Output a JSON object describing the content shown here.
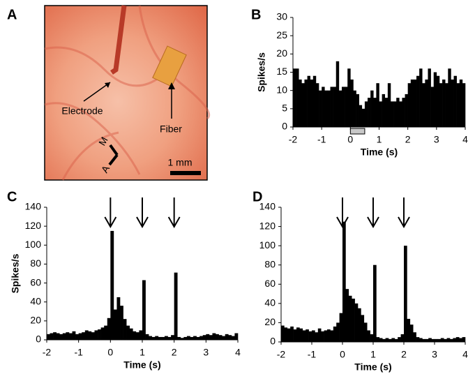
{
  "panel_a": {
    "label": "A",
    "electrode_label": "Electrode",
    "fiber_label": "Fiber",
    "scale_label": "1 mm",
    "dir_m": "M",
    "dir_a": "A"
  },
  "chart_data": [
    {
      "type": "histogram",
      "label": "B",
      "xlabel": "Time (s)",
      "ylabel": "Spikes/s",
      "color": "#000000",
      "bins": [
        -2,
        -1.9,
        -1.8,
        -1.7,
        -1.6,
        -1.5,
        -1.4,
        -1.3,
        -1.2,
        -1.1,
        -1,
        -0.9,
        -0.8,
        -0.7,
        -0.6,
        -0.5,
        -0.4,
        -0.3,
        -0.2,
        -0.1,
        0,
        0.1,
        0.2,
        0.3,
        0.4,
        0.5,
        0.6,
        0.7,
        0.8,
        0.9,
        1,
        1.1,
        1.2,
        1.3,
        1.4,
        1.5,
        1.6,
        1.7,
        1.8,
        1.9,
        2,
        2.1,
        2.2,
        2.3,
        2.4,
        2.5,
        2.6,
        2.7,
        2.8,
        2.9,
        3,
        3.1,
        3.2,
        3.3,
        3.4,
        3.5,
        3.6,
        3.7,
        3.8,
        3.9,
        4
      ],
      "values": [
        16,
        16,
        13,
        12,
        13,
        14,
        13,
        14,
        12,
        10,
        11,
        10,
        10,
        11,
        11,
        18,
        10,
        11,
        11,
        16,
        13,
        10,
        9,
        6,
        5,
        7,
        8,
        10,
        8,
        12,
        7,
        9,
        8,
        12,
        7,
        7,
        8,
        7,
        8,
        9,
        12,
        13,
        13,
        14,
        16,
        12,
        13,
        16,
        11,
        15,
        14,
        12,
        13,
        12,
        16,
        13,
        14,
        12,
        13,
        12
      ],
      "xlim": [
        -2,
        4
      ],
      "xticks": [
        -2,
        -1,
        0,
        1,
        2,
        3,
        4
      ],
      "ylim": [
        0,
        30
      ],
      "yticks": [
        0,
        5,
        10,
        15,
        20,
        25,
        30
      ],
      "stimulus": [
        0,
        0.5
      ],
      "stimulus_color": "#c8c8c8"
    },
    {
      "type": "histogram",
      "label": "C",
      "xlabel": "Time (s)",
      "ylabel": "Spikes/s",
      "color": "#000000",
      "bins": [
        -2,
        -1.9,
        -1.8,
        -1.7,
        -1.6,
        -1.5,
        -1.4,
        -1.3,
        -1.2,
        -1.1,
        -1,
        -0.9,
        -0.8,
        -0.7,
        -0.6,
        -0.5,
        -0.4,
        -0.3,
        -0.2,
        -0.1,
        0,
        0.1,
        0.2,
        0.3,
        0.4,
        0.5,
        0.6,
        0.7,
        0.8,
        0.9,
        1,
        1.1,
        1.2,
        1.3,
        1.4,
        1.5,
        1.6,
        1.7,
        1.8,
        1.9,
        2,
        2.1,
        2.2,
        2.3,
        2.4,
        2.5,
        2.6,
        2.7,
        2.8,
        2.9,
        3,
        3.1,
        3.2,
        3.3,
        3.4,
        3.5,
        3.6,
        3.7,
        3.8,
        3.9,
        4
      ],
      "values": [
        6,
        7,
        8,
        7,
        6,
        7,
        8,
        7,
        9,
        6,
        7,
        8,
        10,
        9,
        8,
        10,
        11,
        13,
        15,
        23,
        115,
        32,
        45,
        36,
        22,
        15,
        12,
        9,
        8,
        10,
        63,
        6,
        4,
        3,
        4,
        3,
        3,
        4,
        3,
        5,
        71,
        3,
        2,
        3,
        4,
        3,
        4,
        3,
        4,
        5,
        6,
        5,
        7,
        6,
        5,
        4,
        6,
        5,
        4,
        7
      ],
      "xlim": [
        -2,
        4
      ],
      "xticks": [
        -2,
        -1,
        0,
        1,
        2,
        3,
        4
      ],
      "ylim": [
        0,
        140
      ],
      "yticks": [
        0,
        20,
        40,
        60,
        80,
        100,
        120,
        140
      ],
      "arrows": [
        0,
        1,
        2
      ]
    },
    {
      "type": "histogram",
      "label": "D",
      "xlabel": "Time (s)",
      "color": "#000000",
      "bins": [
        -2,
        -1.9,
        -1.8,
        -1.7,
        -1.6,
        -1.5,
        -1.4,
        -1.3,
        -1.2,
        -1.1,
        -1,
        -0.9,
        -0.8,
        -0.7,
        -0.6,
        -0.5,
        -0.4,
        -0.3,
        -0.2,
        -0.1,
        0,
        0.1,
        0.2,
        0.3,
        0.4,
        0.5,
        0.6,
        0.7,
        0.8,
        0.9,
        1,
        1.1,
        1.2,
        1.3,
        1.4,
        1.5,
        1.6,
        1.7,
        1.8,
        1.9,
        2,
        2.1,
        2.2,
        2.3,
        2.4,
        2.5,
        2.6,
        2.7,
        2.8,
        2.9,
        3,
        3.1,
        3.2,
        3.3,
        3.4,
        3.5,
        3.6,
        3.7,
        3.8,
        3.9,
        4
      ],
      "values": [
        17,
        15,
        14,
        16,
        13,
        15,
        14,
        12,
        13,
        11,
        12,
        10,
        14,
        11,
        12,
        13,
        12,
        16,
        20,
        30,
        125,
        55,
        48,
        45,
        40,
        35,
        28,
        20,
        12,
        8,
        80,
        5,
        4,
        3,
        4,
        3,
        4,
        3,
        5,
        8,
        100,
        24,
        18,
        10,
        5,
        4,
        3,
        3,
        4,
        3,
        3,
        3,
        4,
        3,
        4,
        3,
        4,
        5,
        4,
        5
      ],
      "xlim": [
        -2,
        4
      ],
      "xticks": [
        -2,
        -1,
        0,
        1,
        2,
        3,
        4
      ],
      "ylim": [
        0,
        140
      ],
      "yticks": [
        0,
        20,
        40,
        60,
        80,
        100,
        120,
        140
      ],
      "arrows": [
        0,
        1,
        2
      ]
    }
  ]
}
